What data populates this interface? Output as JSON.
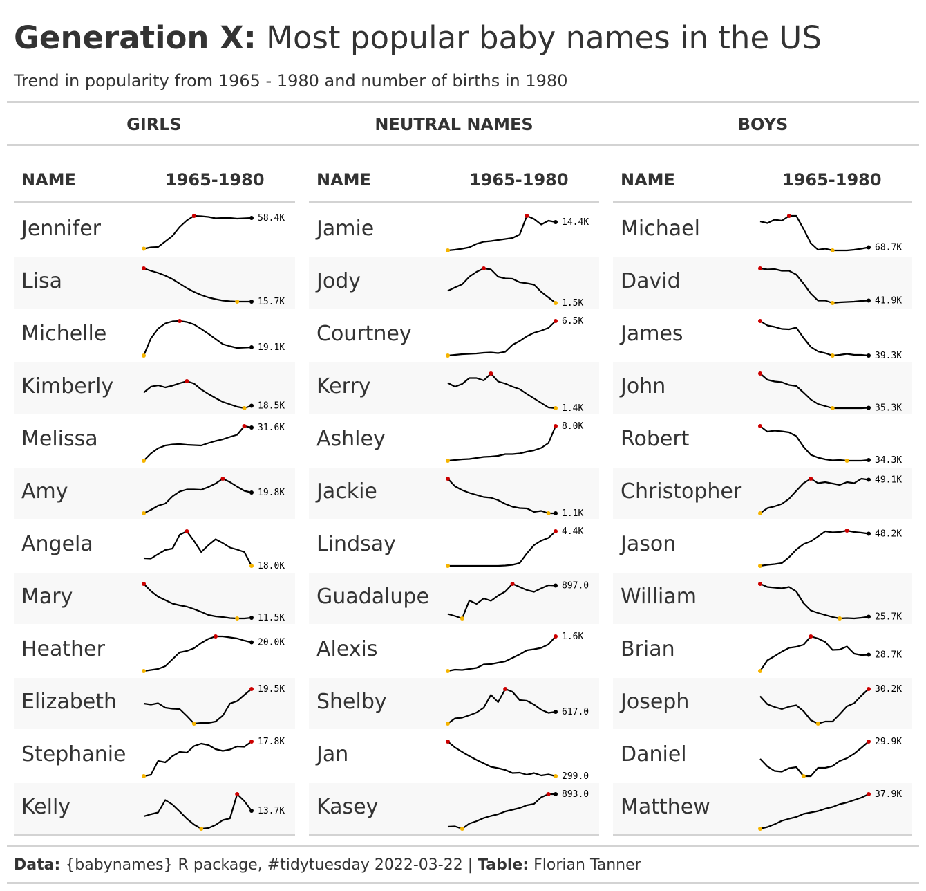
{
  "title_bold": "Generation X:",
  "title_rest": " Most popular baby names in the US",
  "subtitle": "Trend in popularity from 1965 - 1980 and number of births in 1980",
  "groups": [
    {
      "label": "GIRLS",
      "col_name": "NAME",
      "col_trend": "1965-1980",
      "rows": [
        {
          "name": "Jennifer",
          "value": "58.4K"
        },
        {
          "name": "Lisa",
          "value": "15.7K"
        },
        {
          "name": "Michelle",
          "value": "19.1K"
        },
        {
          "name": "Kimberly",
          "value": "18.5K"
        },
        {
          "name": "Melissa",
          "value": "31.6K"
        },
        {
          "name": "Amy",
          "value": "19.8K"
        },
        {
          "name": "Angela",
          "value": "18.0K"
        },
        {
          "name": "Mary",
          "value": "11.5K"
        },
        {
          "name": "Heather",
          "value": "20.0K"
        },
        {
          "name": "Elizabeth",
          "value": "19.5K"
        },
        {
          "name": "Stephanie",
          "value": "17.8K"
        },
        {
          "name": "Kelly",
          "value": "13.7K"
        }
      ]
    },
    {
      "label": "NEUTRAL NAMES",
      "col_name": "NAME",
      "col_trend": "1965-1980",
      "rows": [
        {
          "name": "Jamie",
          "value": "14.4K"
        },
        {
          "name": "Jody",
          "value": "1.5K"
        },
        {
          "name": "Courtney",
          "value": "6.5K"
        },
        {
          "name": "Kerry",
          "value": "1.4K"
        },
        {
          "name": "Ashley",
          "value": "8.0K"
        },
        {
          "name": "Jackie",
          "value": "1.1K"
        },
        {
          "name": "Lindsay",
          "value": "4.4K"
        },
        {
          "name": "Guadalupe",
          "value": "897.0"
        },
        {
          "name": "Alexis",
          "value": "1.6K"
        },
        {
          "name": "Shelby",
          "value": "617.0"
        },
        {
          "name": "Jan",
          "value": "299.0"
        },
        {
          "name": "Kasey",
          "value": "893.0"
        }
      ]
    },
    {
      "label": "BOYS",
      "col_name": "NAME",
      "col_trend": "1965-1980",
      "rows": [
        {
          "name": "Michael",
          "value": "68.7K"
        },
        {
          "name": "David",
          "value": "41.9K"
        },
        {
          "name": "James",
          "value": "39.3K"
        },
        {
          "name": "John",
          "value": "35.3K"
        },
        {
          "name": "Robert",
          "value": "34.3K"
        },
        {
          "name": "Christopher",
          "value": "49.1K"
        },
        {
          "name": "Jason",
          "value": "48.2K"
        },
        {
          "name": "William",
          "value": "25.7K"
        },
        {
          "name": "Brian",
          "value": "28.7K"
        },
        {
          "name": "Joseph",
          "value": "30.2K"
        },
        {
          "name": "Daniel",
          "value": "29.9K"
        },
        {
          "name": "Matthew",
          "value": "37.9K"
        }
      ]
    }
  ],
  "footer": {
    "data_label": "Data:",
    "data_text": " {babynames} R package, #tidytuesday 2022-03-22 | ",
    "table_label": "Table:",
    "table_text": " Florian Tanner"
  },
  "chart_data": {
    "type": "table",
    "x_years": [
      1965,
      1966,
      1967,
      1968,
      1969,
      1970,
      1971,
      1972,
      1973,
      1974,
      1975,
      1976,
      1977,
      1978,
      1979,
      1980
    ],
    "colors": {
      "max": "#cc0000",
      "min": "#f5b400",
      "last": "#000000",
      "line": "#000000",
      "row_shade": "#f8f8f8",
      "rule": "#d3d3d3"
    },
    "series": [
      {
        "group": "GIRLS",
        "name": "Jennifer",
        "label": "58.4K",
        "y": [
          0.05,
          0.09,
          0.1,
          0.26,
          0.42,
          0.68,
          0.87,
          1.0,
          0.99,
          0.97,
          0.93,
          0.94,
          0.94,
          0.92,
          0.93,
          0.94
        ]
      },
      {
        "group": "GIRLS",
        "name": "Lisa",
        "label": "15.7K",
        "y": [
          1.0,
          0.93,
          0.87,
          0.79,
          0.69,
          0.56,
          0.43,
          0.32,
          0.23,
          0.16,
          0.11,
          0.07,
          0.05,
          0.04,
          0.04,
          0.04
        ]
      },
      {
        "group": "GIRLS",
        "name": "Michelle",
        "label": "19.1K",
        "y": [
          0.0,
          0.5,
          0.78,
          0.93,
          0.99,
          1.0,
          0.97,
          0.9,
          0.77,
          0.63,
          0.48,
          0.33,
          0.27,
          0.22,
          0.23,
          0.24
        ]
      },
      {
        "group": "GIRLS",
        "name": "Kimberly",
        "label": "18.5K",
        "y": [
          0.45,
          0.62,
          0.66,
          0.6,
          0.65,
          0.72,
          0.78,
          0.71,
          0.54,
          0.41,
          0.29,
          0.18,
          0.11,
          0.04,
          0.0,
          0.07
        ]
      },
      {
        "group": "GIRLS",
        "name": "Melissa",
        "label": "31.6K",
        "y": [
          0.0,
          0.21,
          0.36,
          0.44,
          0.47,
          0.48,
          0.46,
          0.45,
          0.44,
          0.51,
          0.57,
          0.62,
          0.69,
          0.75,
          1.0,
          0.96
        ]
      },
      {
        "group": "GIRLS",
        "name": "Amy",
        "label": "19.8K",
        "y": [
          0.0,
          0.1,
          0.22,
          0.28,
          0.49,
          0.63,
          0.69,
          0.69,
          0.68,
          0.76,
          0.86,
          1.0,
          0.9,
          0.77,
          0.65,
          0.6
        ]
      },
      {
        "group": "GIRLS",
        "name": "Angela",
        "label": "18.0K",
        "y": [
          0.22,
          0.21,
          0.34,
          0.46,
          0.5,
          0.9,
          1.0,
          0.72,
          0.4,
          0.6,
          0.77,
          0.66,
          0.53,
          0.47,
          0.4,
          0.0
        ]
      },
      {
        "group": "GIRLS",
        "name": "Mary",
        "label": "11.5K",
        "y": [
          1.0,
          0.79,
          0.63,
          0.53,
          0.43,
          0.38,
          0.34,
          0.27,
          0.19,
          0.1,
          0.06,
          0.04,
          0.01,
          0.0,
          0.0,
          0.02
        ]
      },
      {
        "group": "GIRLS",
        "name": "Heather",
        "label": "20.0K",
        "y": [
          0.0,
          0.03,
          0.06,
          0.14,
          0.34,
          0.54,
          0.58,
          0.66,
          0.81,
          0.93,
          1.0,
          1.0,
          0.97,
          0.94,
          0.88,
          0.83
        ]
      },
      {
        "group": "GIRLS",
        "name": "Elizabeth",
        "label": "19.5K",
        "y": [
          0.58,
          0.55,
          0.59,
          0.46,
          0.43,
          0.42,
          0.22,
          0.0,
          0.02,
          0.02,
          0.06,
          0.23,
          0.58,
          0.65,
          0.83,
          1.0
        ]
      },
      {
        "group": "GIRLS",
        "name": "Stephanie",
        "label": "17.8K",
        "y": [
          0.0,
          0.04,
          0.44,
          0.4,
          0.58,
          0.7,
          0.68,
          0.87,
          0.94,
          0.9,
          0.78,
          0.73,
          0.77,
          0.86,
          0.85,
          1.0
        ]
      },
      {
        "group": "GIRLS",
        "name": "Kelly",
        "label": "13.7K",
        "y": [
          0.36,
          0.42,
          0.47,
          0.83,
          0.7,
          0.5,
          0.29,
          0.12,
          0.0,
          0.02,
          0.11,
          0.25,
          0.3,
          1.0,
          0.8,
          0.52
        ]
      },
      {
        "group": "NEUTRAL NAMES",
        "name": "Jamie",
        "label": "14.4K",
        "y": [
          0.0,
          0.02,
          0.05,
          0.09,
          0.19,
          0.25,
          0.27,
          0.3,
          0.33,
          0.36,
          0.46,
          1.0,
          0.91,
          0.75,
          0.86,
          0.82
        ]
      },
      {
        "group": "NEUTRAL NAMES",
        "name": "Jody",
        "label": "1.5K",
        "y": [
          0.35,
          0.45,
          0.54,
          0.76,
          0.9,
          1.0,
          0.97,
          0.76,
          0.71,
          0.7,
          0.6,
          0.57,
          0.53,
          0.32,
          0.16,
          0.0
        ]
      },
      {
        "group": "NEUTRAL NAMES",
        "name": "Courtney",
        "label": "6.5K",
        "y": [
          0.0,
          0.02,
          0.04,
          0.05,
          0.06,
          0.08,
          0.09,
          0.07,
          0.11,
          0.31,
          0.42,
          0.56,
          0.66,
          0.72,
          0.8,
          1.0
        ]
      },
      {
        "group": "NEUTRAL NAMES",
        "name": "Kerry",
        "label": "1.4K",
        "y": [
          0.73,
          0.62,
          0.7,
          0.87,
          0.87,
          0.8,
          1.0,
          0.77,
          0.71,
          0.62,
          0.55,
          0.41,
          0.28,
          0.15,
          0.02,
          0.0
        ]
      },
      {
        "group": "NEUTRAL NAMES",
        "name": "Ashley",
        "label": "8.0K",
        "y": [
          0.0,
          0.02,
          0.04,
          0.05,
          0.08,
          0.11,
          0.12,
          0.14,
          0.19,
          0.19,
          0.21,
          0.26,
          0.3,
          0.37,
          0.51,
          1.0
        ]
      },
      {
        "group": "NEUTRAL NAMES",
        "name": "Jackie",
        "label": "1.1K",
        "y": [
          1.0,
          0.78,
          0.67,
          0.59,
          0.53,
          0.47,
          0.45,
          0.38,
          0.27,
          0.19,
          0.15,
          0.14,
          0.04,
          0.07,
          0.0,
          0.0
        ]
      },
      {
        "group": "NEUTRAL NAMES",
        "name": "Lindsay",
        "label": "4.4K",
        "y": [
          0.0,
          0.0,
          0.0,
          0.0,
          0.0,
          0.0,
          0.0,
          0.0,
          0.01,
          0.03,
          0.08,
          0.36,
          0.6,
          0.73,
          0.81,
          1.0
        ]
      },
      {
        "group": "NEUTRAL NAMES",
        "name": "Guadalupe",
        "label": "897.0",
        "y": [
          0.13,
          0.07,
          0.0,
          0.52,
          0.42,
          0.58,
          0.51,
          0.66,
          0.78,
          1.0,
          0.91,
          0.82,
          0.77,
          0.87,
          0.96,
          0.95
        ]
      },
      {
        "group": "NEUTRAL NAMES",
        "name": "Alexis",
        "label": "1.6K",
        "y": [
          0.0,
          0.04,
          0.03,
          0.06,
          0.09,
          0.19,
          0.2,
          0.24,
          0.28,
          0.38,
          0.48,
          0.6,
          0.63,
          0.67,
          0.77,
          1.0
        ]
      },
      {
        "group": "NEUTRAL NAMES",
        "name": "Shelby",
        "label": "617.0",
        "y": [
          0.0,
          0.15,
          0.17,
          0.24,
          0.32,
          0.46,
          0.83,
          0.62,
          1.0,
          0.92,
          0.68,
          0.66,
          0.55,
          0.4,
          0.31,
          0.34
        ]
      },
      {
        "group": "NEUTRAL NAMES",
        "name": "Jan",
        "label": "299.0",
        "y": [
          1.0,
          0.83,
          0.7,
          0.58,
          0.47,
          0.37,
          0.27,
          0.23,
          0.18,
          0.09,
          0.1,
          0.04,
          0.09,
          0.02,
          0.05,
          0.0
        ]
      },
      {
        "group": "NEUTRAL NAMES",
        "name": "Kasey",
        "label": "893.0",
        "y": [
          0.06,
          0.07,
          0.0,
          0.15,
          0.22,
          0.31,
          0.37,
          0.42,
          0.5,
          0.55,
          0.6,
          0.68,
          0.72,
          0.91,
          1.0,
          1.0
        ]
      },
      {
        "group": "BOYS",
        "name": "Michael",
        "label": "68.7K",
        "y": [
          0.84,
          0.79,
          0.89,
          0.86,
          1.0,
          1.0,
          0.62,
          0.21,
          0.02,
          0.05,
          0.0,
          0.0,
          0.0,
          0.02,
          0.05,
          0.09
        ]
      },
      {
        "group": "BOYS",
        "name": "David",
        "label": "41.9K",
        "y": [
          1.0,
          0.97,
          0.98,
          0.93,
          0.93,
          0.82,
          0.56,
          0.27,
          0.07,
          0.07,
          0.0,
          0.02,
          0.03,
          0.04,
          0.06,
          0.07
        ]
      },
      {
        "group": "BOYS",
        "name": "James",
        "label": "39.3K",
        "y": [
          1.0,
          0.87,
          0.83,
          0.77,
          0.76,
          0.81,
          0.51,
          0.25,
          0.12,
          0.07,
          0.0,
          0.02,
          0.05,
          0.02,
          0.02,
          0.0
        ]
      },
      {
        "group": "BOYS",
        "name": "John",
        "label": "35.3K",
        "y": [
          1.0,
          0.82,
          0.77,
          0.75,
          0.67,
          0.64,
          0.45,
          0.25,
          0.12,
          0.06,
          0.0,
          0.0,
          0.0,
          0.0,
          0.0,
          0.01
        ]
      },
      {
        "group": "BOYS",
        "name": "Robert",
        "label": "34.3K",
        "y": [
          1.0,
          0.84,
          0.87,
          0.85,
          0.82,
          0.71,
          0.4,
          0.17,
          0.09,
          0.04,
          0.01,
          0.02,
          0.0,
          0.0,
          0.0,
          0.02
        ]
      },
      {
        "group": "BOYS",
        "name": "Christopher",
        "label": "49.1K",
        "y": [
          0.0,
          0.15,
          0.2,
          0.27,
          0.42,
          0.65,
          0.87,
          1.0,
          0.87,
          0.9,
          0.86,
          0.82,
          0.9,
          0.87,
          1.0,
          0.97
        ]
      },
      {
        "group": "BOYS",
        "name": "Jason",
        "label": "48.2K",
        "y": [
          0.0,
          0.03,
          0.05,
          0.08,
          0.25,
          0.47,
          0.63,
          0.71,
          0.85,
          1.0,
          0.97,
          0.98,
          1.02,
          0.98,
          0.96,
          0.93
        ]
      },
      {
        "group": "BOYS",
        "name": "William",
        "label": "25.7K",
        "y": [
          1.0,
          0.91,
          0.89,
          0.87,
          0.91,
          0.78,
          0.44,
          0.23,
          0.16,
          0.1,
          0.04,
          0.0,
          0.01,
          0.0,
          0.02,
          0.05
        ]
      },
      {
        "group": "BOYS",
        "name": "Brian",
        "label": "28.7K",
        "y": [
          0.0,
          0.31,
          0.43,
          0.56,
          0.67,
          0.7,
          0.76,
          1.0,
          0.94,
          0.84,
          0.61,
          0.62,
          0.71,
          0.5,
          0.46,
          0.47
        ]
      },
      {
        "group": "BOYS",
        "name": "Joseph",
        "label": "30.2K",
        "y": [
          0.79,
          0.56,
          0.48,
          0.42,
          0.49,
          0.53,
          0.36,
          0.1,
          0.0,
          0.06,
          0.06,
          0.27,
          0.5,
          0.59,
          0.81,
          1.0
        ]
      },
      {
        "group": "BOYS",
        "name": "Daniel",
        "label": "29.9K",
        "y": [
          0.5,
          0.28,
          0.15,
          0.13,
          0.23,
          0.26,
          0.0,
          0.0,
          0.24,
          0.24,
          0.29,
          0.44,
          0.52,
          0.65,
          0.82,
          1.0
        ]
      },
      {
        "group": "BOYS",
        "name": "Matthew",
        "label": "37.9K",
        "y": [
          0.0,
          0.05,
          0.13,
          0.23,
          0.29,
          0.34,
          0.43,
          0.47,
          0.51,
          0.58,
          0.63,
          0.71,
          0.76,
          0.83,
          0.9,
          1.0
        ]
      }
    ]
  }
}
